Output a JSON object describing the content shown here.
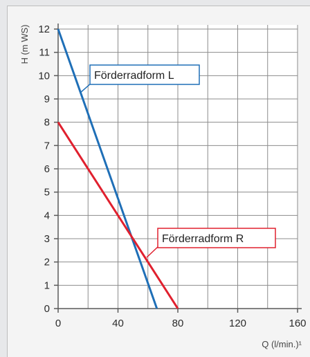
{
  "chart_data": {
    "type": "line",
    "ylabel": "H (m WS)",
    "xlabel": "Q (l/min.)¹",
    "xlim": [
      0,
      160
    ],
    "ylim": [
      0,
      12
    ],
    "x_ticks": [
      0,
      40,
      80,
      120,
      160
    ],
    "x_tick_labels": [
      "0",
      "40",
      "80",
      "120",
      "160"
    ],
    "y_ticks": [
      0,
      1,
      2,
      3,
      4,
      5,
      6,
      7,
      8,
      9,
      10,
      11,
      12
    ],
    "y_tick_labels": [
      "0",
      "1",
      "2",
      "3",
      "4",
      "5",
      "6",
      "7",
      "8",
      "9",
      "10",
      "11",
      "12"
    ],
    "grid": true,
    "series": [
      {
        "name": "Förderradform L",
        "color": "#1f6fb7",
        "x": [
          0,
          66
        ],
        "y": [
          12,
          0
        ]
      },
      {
        "name": "Förderradform R",
        "color": "#e0202e",
        "x": [
          0,
          80
        ],
        "y": [
          8,
          0
        ]
      }
    ]
  }
}
